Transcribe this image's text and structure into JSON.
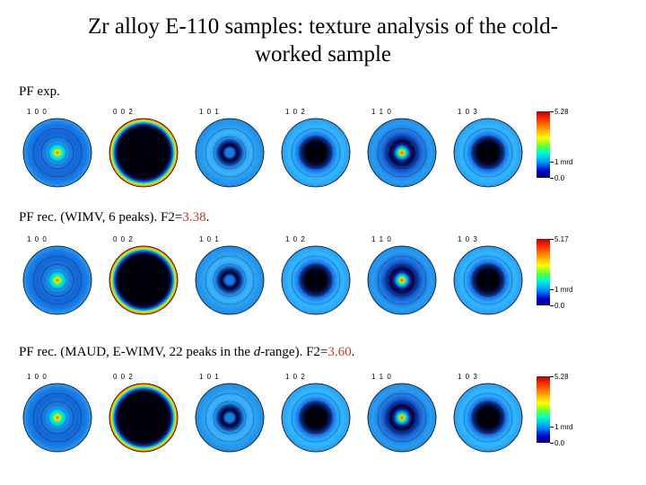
{
  "title": "Zr alloy E-110 samples: texture analysis of the cold-worked sample",
  "title_line1": "Zr alloy E-110 samples: texture analysis of the cold-",
  "title_line2": "worked sample",
  "poles": [
    "1 0 0",
    "0 0 2",
    "1 0 1",
    "1 0 2",
    "1 1 0",
    "1 0 3"
  ],
  "rows": [
    {
      "caption_text": "PF exp.",
      "caption_red": "",
      "colorbar": {
        "max": "5.28",
        "mid": "1 mrd",
        "min": "0.0"
      }
    },
    {
      "caption_text": "PF rec. (WIMV, 6 peaks). F2=",
      "caption_red": "3.38",
      "caption_end": ".",
      "colorbar": {
        "max": "5.17",
        "mid": "1 mrd",
        "min": "0.0"
      }
    },
    {
      "caption_pre": "PF rec. (MAUD, E-WIMV, 22 peaks in the ",
      "caption_ital": "d",
      "caption_post": "-range). F2=",
      "caption_red": "3.60",
      "caption_end": ".",
      "colorbar": {
        "max": "5.28",
        "mid": "1 mrd",
        "min": "0.0"
      }
    }
  ],
  "pole_figure_styles": [
    "central-peak",
    "dark-core-yellow-rim",
    "ring",
    "dark-core",
    "central-peak-dark-ring",
    "dark-core"
  ],
  "colors": {
    "accent_red": "#c0392b",
    "outer_blue": "#1f8ee6",
    "dark": "#000010"
  }
}
